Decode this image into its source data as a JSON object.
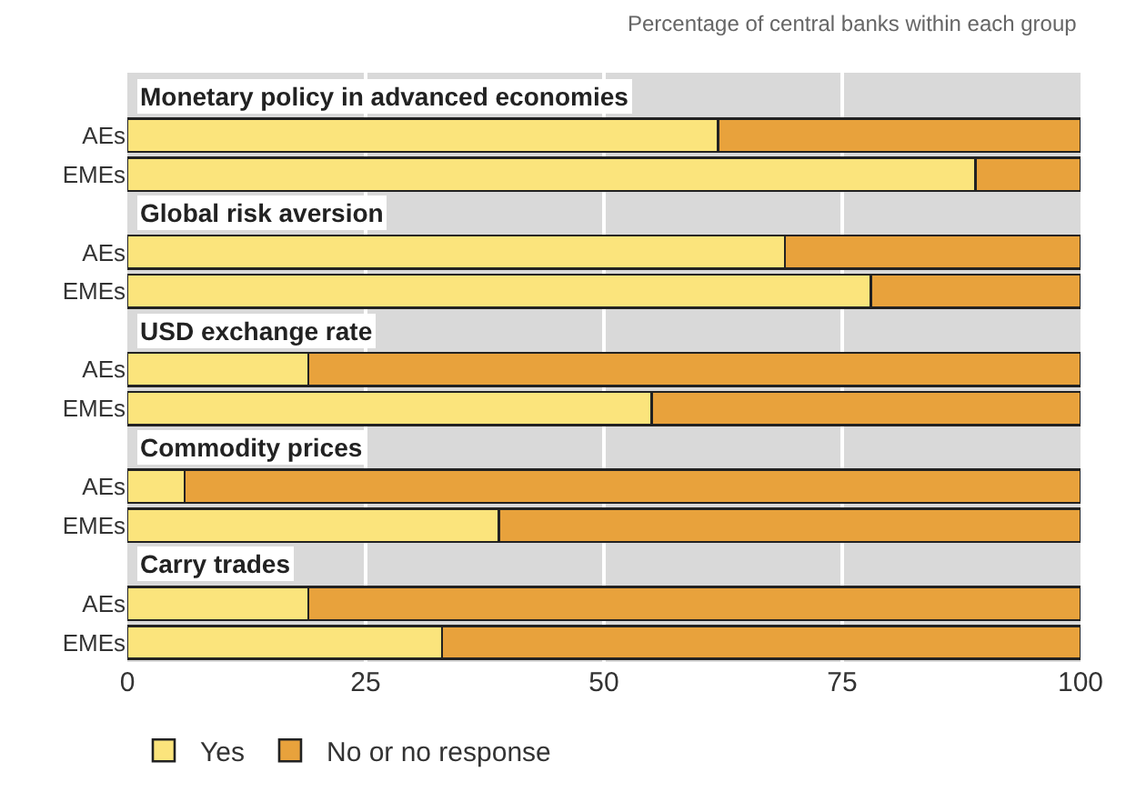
{
  "chart_data": {
    "type": "bar",
    "orientation": "horizontal",
    "stacked": true,
    "subtitle": "Percentage of central banks within each group",
    "categories": [
      "AEs",
      "EMEs",
      "AEs",
      "EMEs",
      "AEs",
      "EMEs",
      "AEs",
      "EMEs",
      "AEs",
      "EMEs"
    ],
    "annotations": [
      "Monetary policy in advanced economies",
      "Global risk aversion",
      "USD exchange rate",
      "Commodity prices",
      "Carry trades"
    ],
    "series": [
      {
        "name": "Yes",
        "color": "#fbe47c",
        "values": [
          62,
          89,
          69,
          78,
          19,
          55,
          6,
          39,
          19,
          33
        ]
      },
      {
        "name": "No or no response",
        "color": "#e8a23c",
        "values": [
          38,
          11,
          31,
          22,
          81,
          45,
          94,
          61,
          81,
          67
        ]
      }
    ],
    "xlim": [
      0,
      100
    ],
    "xticks": [
      0,
      25,
      50,
      75,
      100
    ],
    "grid": "x",
    "legend": "bottom left"
  }
}
